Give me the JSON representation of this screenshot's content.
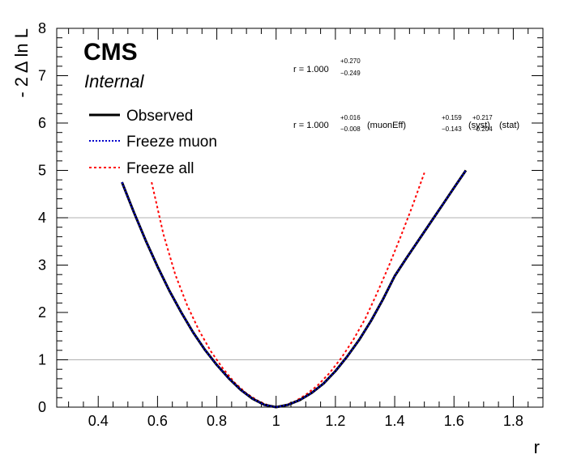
{
  "chart_data": {
    "type": "line",
    "xlabel": "r",
    "ylabel": "- 2 Δ ln L",
    "xlim": [
      0.26,
      1.9
    ],
    "ylim": [
      0,
      8
    ],
    "x_ticks": [
      "0.4",
      "0.6",
      "0.8",
      "1",
      "1.2",
      "1.4",
      "1.6",
      "1.8"
    ],
    "x_tick_values": [
      0.4,
      0.6,
      0.8,
      1.0,
      1.2,
      1.4,
      1.6,
      1.8
    ],
    "y_ticks": [
      "0",
      "1",
      "2",
      "3",
      "4",
      "5",
      "6",
      "7",
      "8"
    ],
    "y_tick_values": [
      0,
      1,
      2,
      3,
      4,
      5,
      6,
      7,
      8
    ],
    "reference_lines_y": [
      1,
      4
    ],
    "grid": false,
    "legend_position": "top-left",
    "labels": {
      "cms": "CMS",
      "internal": "Internal"
    },
    "annotations": {
      "total": {
        "prefix": "r = 1.000",
        "up": "+0.270",
        "down": "−0.249"
      },
      "breakdown": {
        "prefix": "r = 1.000",
        "parts": [
          {
            "up": "+0.016",
            "down": "−0.008",
            "label": "(muonEff)"
          },
          {
            "up": "+0.159",
            "down": "−0.143",
            "label": "(syst)"
          },
          {
            "up": "+0.217",
            "down": "−0.204",
            "label": "(stat)"
          }
        ]
      }
    },
    "series": [
      {
        "name": "Observed",
        "color": "#000000",
        "style": "solid",
        "x": [
          0.48,
          0.52,
          0.56,
          0.6,
          0.64,
          0.68,
          0.72,
          0.76,
          0.8,
          0.84,
          0.88,
          0.92,
          0.96,
          1.0,
          1.04,
          1.08,
          1.12,
          1.16,
          1.2,
          1.24,
          1.28,
          1.32,
          1.36,
          1.4,
          1.44,
          1.48,
          1.52,
          1.56,
          1.6,
          1.64
        ],
        "y": [
          4.75,
          4.12,
          3.52,
          2.97,
          2.46,
          2.0,
          1.58,
          1.21,
          0.89,
          0.61,
          0.37,
          0.18,
          0.05,
          0.0,
          0.05,
          0.15,
          0.3,
          0.5,
          0.76,
          1.07,
          1.42,
          1.82,
          2.27,
          2.77,
          3.15,
          3.52,
          3.89,
          4.26,
          4.63,
          5.0
        ]
      },
      {
        "name": "Freeze muon",
        "color": "#0000cc",
        "style": "dotted",
        "x": [
          0.48,
          0.52,
          0.56,
          0.6,
          0.64,
          0.68,
          0.72,
          0.76,
          0.8,
          0.84,
          0.88,
          0.92,
          0.96,
          1.0,
          1.04,
          1.08,
          1.12,
          1.16,
          1.2,
          1.24,
          1.28,
          1.32,
          1.36,
          1.4,
          1.44,
          1.48,
          1.52,
          1.56,
          1.6,
          1.64
        ],
        "y": [
          4.75,
          4.12,
          3.52,
          2.97,
          2.46,
          2.0,
          1.58,
          1.21,
          0.89,
          0.61,
          0.37,
          0.18,
          0.05,
          0.0,
          0.05,
          0.15,
          0.3,
          0.5,
          0.76,
          1.07,
          1.42,
          1.82,
          2.27,
          2.77,
          3.15,
          3.52,
          3.89,
          4.26,
          4.63,
          5.0
        ]
      },
      {
        "name": "Freeze all",
        "color": "#ff0000",
        "style": "dashed",
        "x": [
          0.58,
          0.62,
          0.66,
          0.7,
          0.74,
          0.78,
          0.82,
          0.86,
          0.9,
          0.94,
          0.98,
          1.0,
          1.02,
          1.06,
          1.1,
          1.14,
          1.18,
          1.22,
          1.26,
          1.3,
          1.34,
          1.38,
          1.42,
          1.46,
          1.5
        ],
        "y": [
          4.75,
          3.65,
          2.8,
          2.15,
          1.62,
          1.18,
          0.82,
          0.52,
          0.29,
          0.13,
          0.02,
          0.0,
          0.02,
          0.11,
          0.26,
          0.46,
          0.72,
          1.04,
          1.42,
          1.86,
          2.4,
          2.98,
          3.6,
          4.25,
          4.95
        ]
      }
    ]
  }
}
